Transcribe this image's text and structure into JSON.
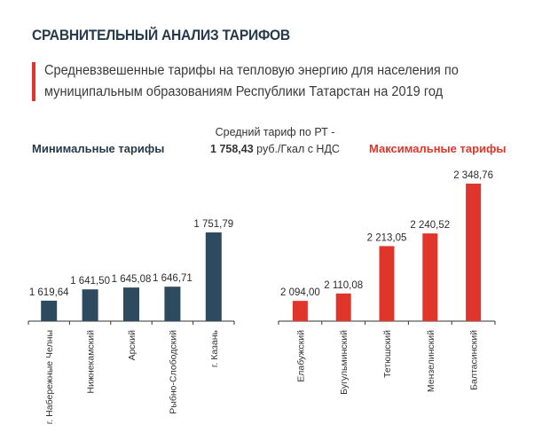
{
  "header": {
    "title": "СРАВНИТЕЛЬНЫЙ АНАЛИЗ ТАРИФОВ",
    "subtitle": "Средневзвешенные тарифы на тепловую энергию для населения по муниципальным образованиям Республики Татарстан на 2019 год"
  },
  "average": {
    "line1": "Средний тариф по РТ -",
    "value": "1 758,43",
    "unit": " руб./Гкал с НДС"
  },
  "colors": {
    "min": "#2d4a5e",
    "max": "#e0352b",
    "accent": "#e0352b",
    "title": "#263a4c",
    "axis": "#333333"
  },
  "chart_data": [
    {
      "type": "bar",
      "title": "Минимальные тарифы",
      "categories": [
        "г. Набережные Челны",
        "Нижнекамский",
        "Арский",
        "Рыбно-Слободский",
        "г. Казань"
      ],
      "values": [
        1619.64,
        1641.5,
        1645.08,
        1646.71,
        1751.79
      ],
      "value_labels": [
        "1 619,64",
        "1 641,50",
        "1 645,08",
        "1 646,71",
        "1 751,79"
      ],
      "color": "#2d4a5e"
    },
    {
      "type": "bar",
      "title": "Максимальные тарифы",
      "categories": [
        "Елабужский",
        "Бугульминский",
        "Тетюшский",
        "Мензелинский",
        "Балтасинский"
      ],
      "values": [
        2094.0,
        2110.08,
        2213.05,
        2240.52,
        2348.76
      ],
      "value_labels": [
        "2 094,00",
        "2 110,08",
        "2 213,05",
        "2 240,52",
        "2 348,76"
      ],
      "color": "#e0352b"
    }
  ]
}
